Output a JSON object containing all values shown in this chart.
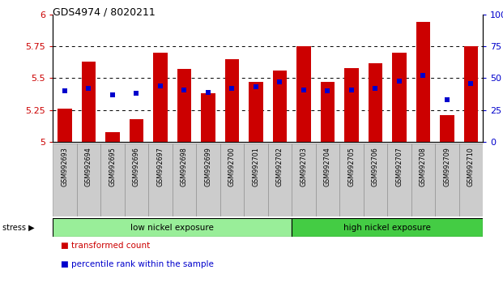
{
  "title": "GDS4974 / 8020211",
  "samples": [
    "GSM992693",
    "GSM992694",
    "GSM992695",
    "GSM992696",
    "GSM992697",
    "GSM992698",
    "GSM992699",
    "GSM992700",
    "GSM992701",
    "GSM992702",
    "GSM992703",
    "GSM992704",
    "GSM992705",
    "GSM992706",
    "GSM992707",
    "GSM992708",
    "GSM992709",
    "GSM992710"
  ],
  "transformed_count": [
    5.26,
    5.63,
    5.08,
    5.18,
    5.7,
    5.57,
    5.38,
    5.65,
    5.47,
    5.56,
    5.75,
    5.47,
    5.58,
    5.62,
    5.7,
    5.94,
    5.21,
    5.75
  ],
  "percentile_rank": [
    40,
    42,
    37,
    38,
    44,
    41,
    39,
    42,
    43,
    47,
    41,
    40,
    41,
    42,
    48,
    52,
    33,
    46
  ],
  "y_min": 5.0,
  "y_max": 6.0,
  "y_ticks": [
    5.0,
    5.25,
    5.5,
    5.75,
    6.0
  ],
  "y2_ticks": [
    0,
    25,
    50,
    75,
    100
  ],
  "bar_color": "#CC0000",
  "square_color": "#0000CC",
  "group1_label": "low nickel exposure",
  "group2_label": "high nickel exposure",
  "group1_count": 10,
  "group2_count": 8,
  "stress_label": "stress",
  "group1_color": "#99EE99",
  "group2_color": "#44CC44",
  "legend1": "transformed count",
  "legend2": "percentile rank within the sample",
  "bar_width": 0.6,
  "ticklabel_bg": "#CCCCCC"
}
